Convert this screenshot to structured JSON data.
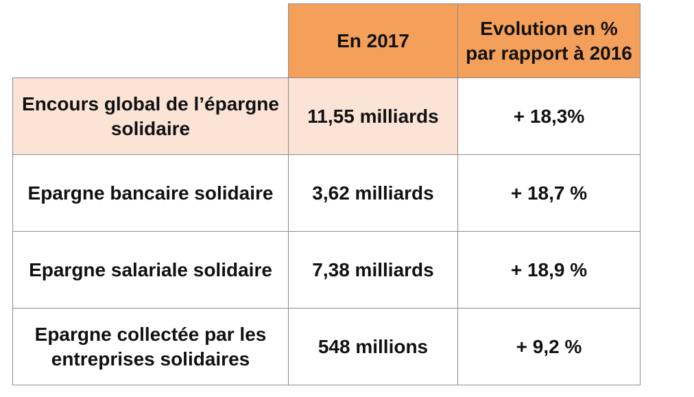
{
  "chart_data": {
    "type": "table",
    "columns": [
      "En 2017",
      "Evolution en % par rapport à 2016"
    ],
    "rows": [
      {
        "label": "Encours global de l’épargne solidaire",
        "value_2017": "11,55 milliards",
        "evolution": "+ 18,3%",
        "highlighted": true
      },
      {
        "label": "Epargne bancaire solidaire",
        "value_2017": "3,62 milliards",
        "evolution": "+ 18,7 %",
        "highlighted": false
      },
      {
        "label": "Epargne salariale solidaire",
        "value_2017": "7,38 milliards",
        "evolution": "+ 18,9 %",
        "highlighted": false
      },
      {
        "label": "Epargne collectée par les entreprises solidaires",
        "value_2017": "548 millions",
        "evolution": "+ 9,2 %",
        "highlighted": false
      }
    ]
  },
  "colors": {
    "header_bg": "#f4a05a",
    "highlight_row_bg": "#fbe3d6",
    "border": "#8a8a8a",
    "text": "#111111"
  }
}
